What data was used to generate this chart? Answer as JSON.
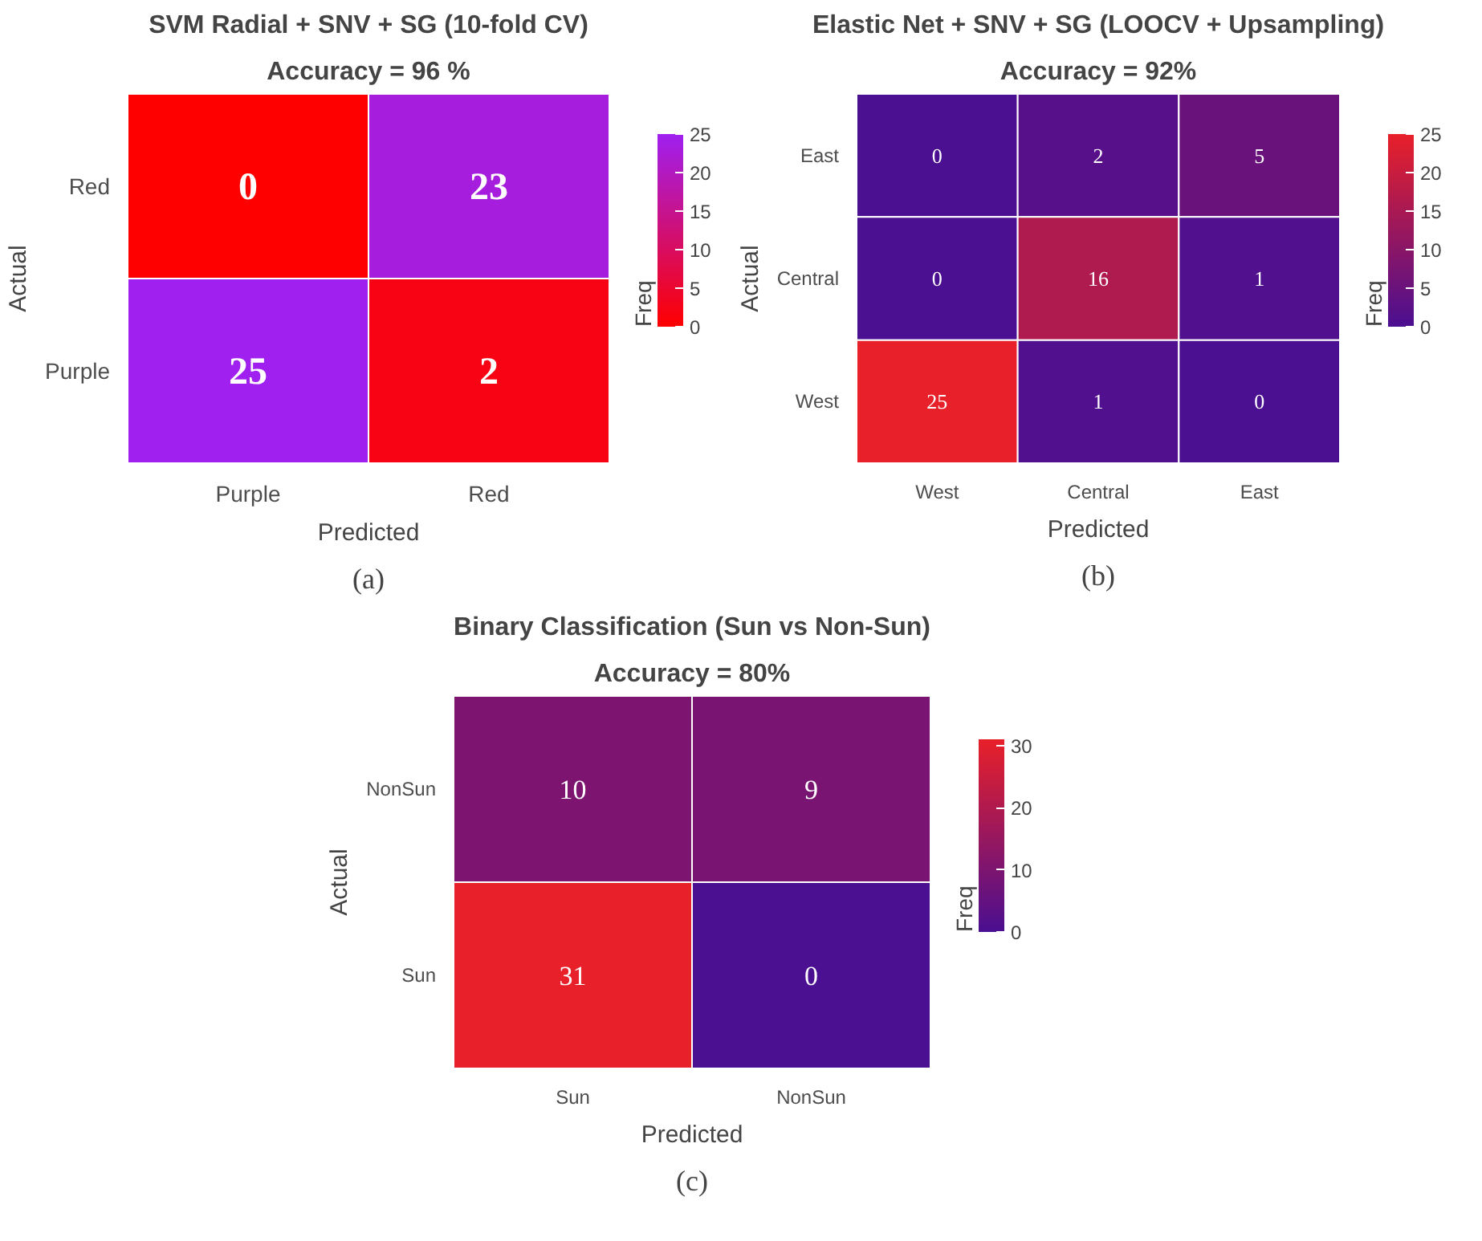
{
  "chart_data": [
    {
      "type": "heatmap",
      "title": "SVM Radial + SNV + SG (10-fold CV)",
      "subtitle": "Accuracy = 96 %",
      "xlabel": "Predicted",
      "ylabel": "Actual",
      "clabel": "Freq",
      "categories": [
        "Purple",
        "Red"
      ],
      "y_categories": [
        "Red",
        "Purple"
      ],
      "cells": [
        [
          0,
          23
        ],
        [
          25,
          2
        ]
      ],
      "colors": [
        "#ff0000",
        "#a020f0"
      ],
      "clim": [
        0,
        25
      ],
      "cticks": [
        0,
        5,
        10,
        15,
        20,
        25
      ],
      "data_labels": true,
      "annotations": [
        "(a)"
      ]
    },
    {
      "type": "heatmap",
      "title": "Elastic Net + SNV + SG (LOOCV + Upsampling)",
      "subtitle": "Accuracy = 92%",
      "xlabel": "Predicted",
      "ylabel": "Actual",
      "clabel": "Freq",
      "categories": [
        "West",
        "Central",
        "East"
      ],
      "y_categories": [
        "East",
        "Central",
        "West"
      ],
      "cells": [
        [
          0,
          2,
          5
        ],
        [
          0,
          16,
          1
        ],
        [
          25,
          1,
          0
        ]
      ],
      "colors": [
        "#4b0f91",
        "#e8202a"
      ],
      "clim": [
        0,
        25
      ],
      "cticks": [
        0,
        5,
        10,
        15,
        20,
        25
      ],
      "data_labels": true,
      "annotations": [
        "(b)"
      ]
    },
    {
      "type": "heatmap",
      "title": "Binary Classification (Sun vs Non-Sun)",
      "subtitle": "Accuracy = 80%",
      "xlabel": "Predicted",
      "ylabel": "Actual",
      "clabel": "Freq",
      "categories": [
        "Sun",
        "NonSun"
      ],
      "y_categories": [
        "NonSun",
        "Sun"
      ],
      "cells": [
        [
          10,
          9
        ],
        [
          31,
          0
        ]
      ],
      "colors": [
        "#4b0f91",
        "#e8202a"
      ],
      "clim": [
        0,
        31
      ],
      "cticks": [
        0,
        10,
        20,
        30
      ],
      "data_labels": true,
      "annotations": [
        "(c)"
      ]
    }
  ]
}
